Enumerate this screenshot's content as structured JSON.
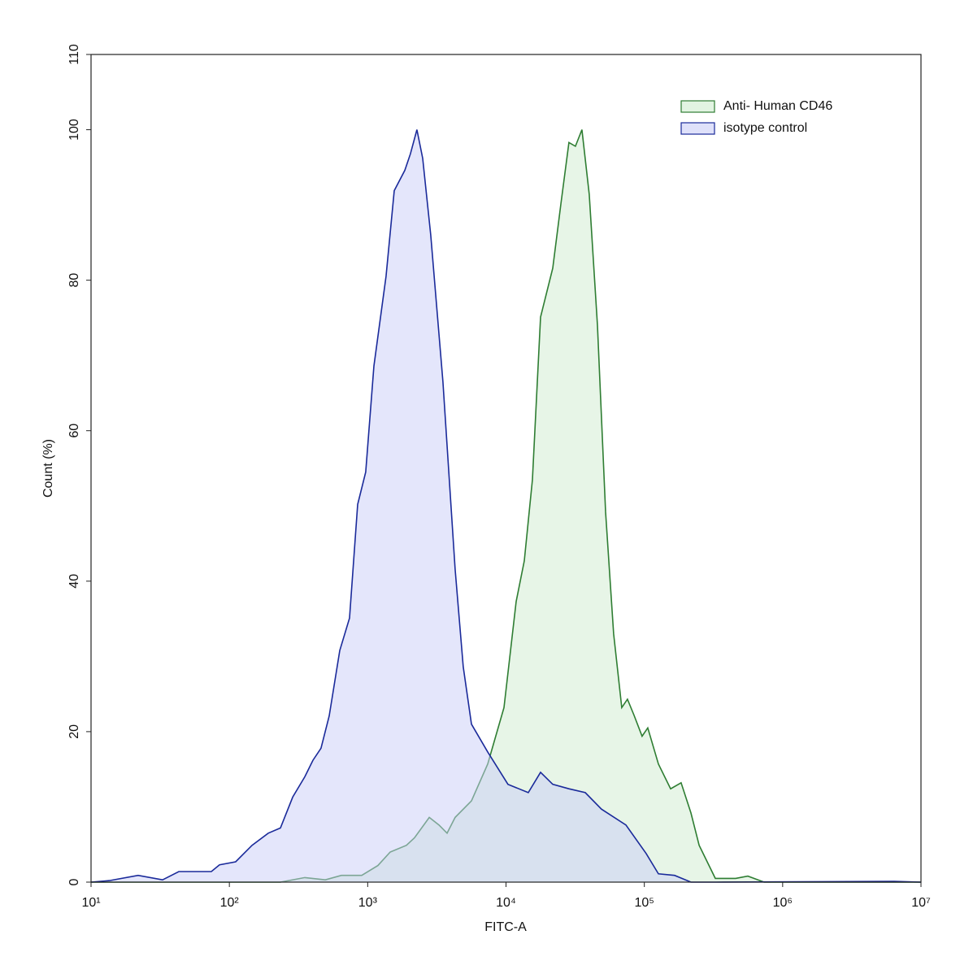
{
  "chart_data": {
    "type": "area",
    "xlabel": "FITC-A",
    "ylabel": "Count (%)",
    "xscale": "log",
    "xlim": [
      10,
      10000000
    ],
    "ylim": [
      0,
      110
    ],
    "xticks": [
      {
        "value": 10,
        "label": "10¹"
      },
      {
        "value": 100,
        "label": "10²"
      },
      {
        "value": 1000,
        "label": "10³"
      },
      {
        "value": 10000,
        "label": "10⁴"
      },
      {
        "value": 100000,
        "label": "10⁵"
      },
      {
        "value": 1000000,
        "label": "10⁶"
      },
      {
        "value": 10000000,
        "label": "10⁷"
      }
    ],
    "yticks": [
      0,
      20,
      40,
      60,
      80,
      100,
      110
    ],
    "legend": "upper right",
    "series": [
      {
        "name": "Anti- Human CD46",
        "color": "#2e7d32",
        "fill": "#cfeccf",
        "x": [
          10,
          234,
          351,
          494,
          646,
          905,
          1186,
          1455,
          1906,
          2183,
          2786,
          3275,
          3750,
          4287,
          5623,
          7379,
          9666,
          11840,
          13550,
          15520,
          17780,
          21780,
          24950,
          28510,
          31770,
          35400,
          39990,
          45800,
          52460,
          59980,
          68710,
          75510,
          84140,
          96390,
          105900,
          126500,
          154900,
          184500,
          217300,
          248900,
          326000,
          457100,
          559800,
          734500,
          10000000
        ],
        "values": [
          0,
          0,
          0.6,
          0.3,
          0.9,
          0.9,
          2.2,
          4,
          4.9,
          5.9,
          8.6,
          7.6,
          6.5,
          8.6,
          10.8,
          15.7,
          23.2,
          37.3,
          42.7,
          53.5,
          75.1,
          81.6,
          90.2,
          98.3,
          97.8,
          100,
          91.4,
          74,
          49.2,
          33,
          23.2,
          24.3,
          22.2,
          19.4,
          20.5,
          15.7,
          12.4,
          13.2,
          9.2,
          4.9,
          0.5,
          0.5,
          0.8,
          0,
          0
        ]
      },
      {
        "name": "isotype control",
        "color": "#1a2a9a",
        "fill": "#c9cdf7",
        "x": [
          10,
          13.6,
          21.9,
          32.9,
          43.1,
          74.1,
          84.8,
          111,
          146,
          191,
          234,
          287,
          351,
          402,
          460,
          527,
          628,
          739,
          846,
          968,
          1109,
          1358,
          1555,
          1854,
          2038,
          2271,
          2500,
          2858,
          3501,
          4287,
          4909,
          5623,
          7379,
          10330,
          14490,
          17780,
          21780,
          28510,
          37410,
          48980,
          73620,
          103100,
          126500,
          165600,
          217300,
          326000,
          6397000,
          10000000
        ],
        "values": [
          0,
          0.2,
          0.9,
          0.3,
          1.4,
          1.4,
          2.3,
          2.7,
          4.9,
          6.5,
          7.2,
          11.3,
          14,
          16.2,
          17.8,
          22.1,
          30.8,
          35.1,
          50.2,
          54.5,
          68.6,
          80.5,
          91.9,
          94.6,
          96.8,
          100,
          96.2,
          86,
          66.5,
          41.6,
          28.6,
          21,
          17.3,
          13,
          11.9,
          14.6,
          13,
          12.4,
          11.9,
          9.7,
          7.6,
          3.8,
          1.1,
          0.9,
          0,
          0,
          0.1,
          0
        ]
      }
    ]
  }
}
